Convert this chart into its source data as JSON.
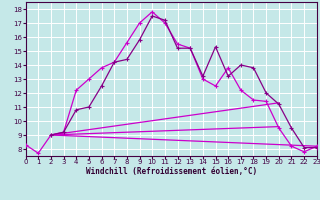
{
  "xlabel": "Windchill (Refroidissement éolien,°C)",
  "xlim": [
    0,
    23
  ],
  "ylim": [
    7.5,
    18.5
  ],
  "yticks": [
    8,
    9,
    10,
    11,
    12,
    13,
    14,
    15,
    16,
    17,
    18
  ],
  "xticks": [
    0,
    1,
    2,
    3,
    4,
    5,
    6,
    7,
    8,
    9,
    10,
    11,
    12,
    13,
    14,
    15,
    16,
    17,
    18,
    19,
    20,
    21,
    22,
    23
  ],
  "background_color": "#c5e8e8",
  "grid_color": "#ffffff",
  "line_color": "#cc00cc",
  "line_color2": "#880088",
  "series1_x": [
    0,
    1,
    2,
    3,
    4,
    5,
    6,
    7,
    8,
    9,
    10,
    11,
    12,
    13,
    14,
    15,
    16,
    17,
    18,
    19,
    20,
    21,
    22,
    23
  ],
  "series1_y": [
    8.3,
    7.7,
    9.0,
    9.2,
    12.2,
    13.0,
    13.8,
    14.2,
    15.6,
    17.0,
    17.8,
    17.0,
    15.5,
    15.2,
    13.0,
    12.5,
    13.8,
    12.2,
    11.5,
    11.4,
    9.5,
    8.2,
    7.8,
    8.2
  ],
  "series2_x": [
    2,
    3,
    4,
    5,
    6,
    7,
    8,
    9,
    10,
    11,
    12,
    13,
    14,
    15,
    16,
    17,
    18,
    19,
    20,
    21,
    22,
    23
  ],
  "series2_y": [
    9.0,
    9.2,
    10.8,
    11.0,
    12.5,
    14.2,
    14.4,
    15.8,
    17.5,
    17.2,
    15.2,
    15.2,
    13.2,
    15.3,
    13.2,
    14.0,
    13.8,
    12.0,
    11.2,
    9.5,
    8.1,
    8.1
  ],
  "series3_x": [
    2,
    23
  ],
  "series3_y": [
    9.0,
    8.2
  ],
  "series4_x": [
    2,
    20
  ],
  "series4_y": [
    9.0,
    9.6
  ],
  "series5_x": [
    2,
    20
  ],
  "series5_y": [
    9.0,
    11.3
  ]
}
